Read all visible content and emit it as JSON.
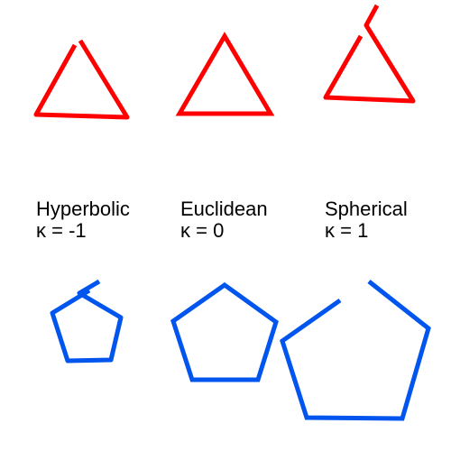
{
  "colors": {
    "triangles": "#ff0000",
    "pentagons": "#0055ee",
    "text": "#000000",
    "background": "#ffffff"
  },
  "geometries": [
    {
      "id": "hyperbolic",
      "name": "Hyperbolic",
      "curvature_label": "κ = -1",
      "curvature": -1
    },
    {
      "id": "euclidean",
      "name": "Euclidean",
      "curvature_label": "κ = 0",
      "curvature": 0
    },
    {
      "id": "spherical",
      "name": "Spherical",
      "curvature_label": "κ = 1",
      "curvature": 1
    }
  ]
}
